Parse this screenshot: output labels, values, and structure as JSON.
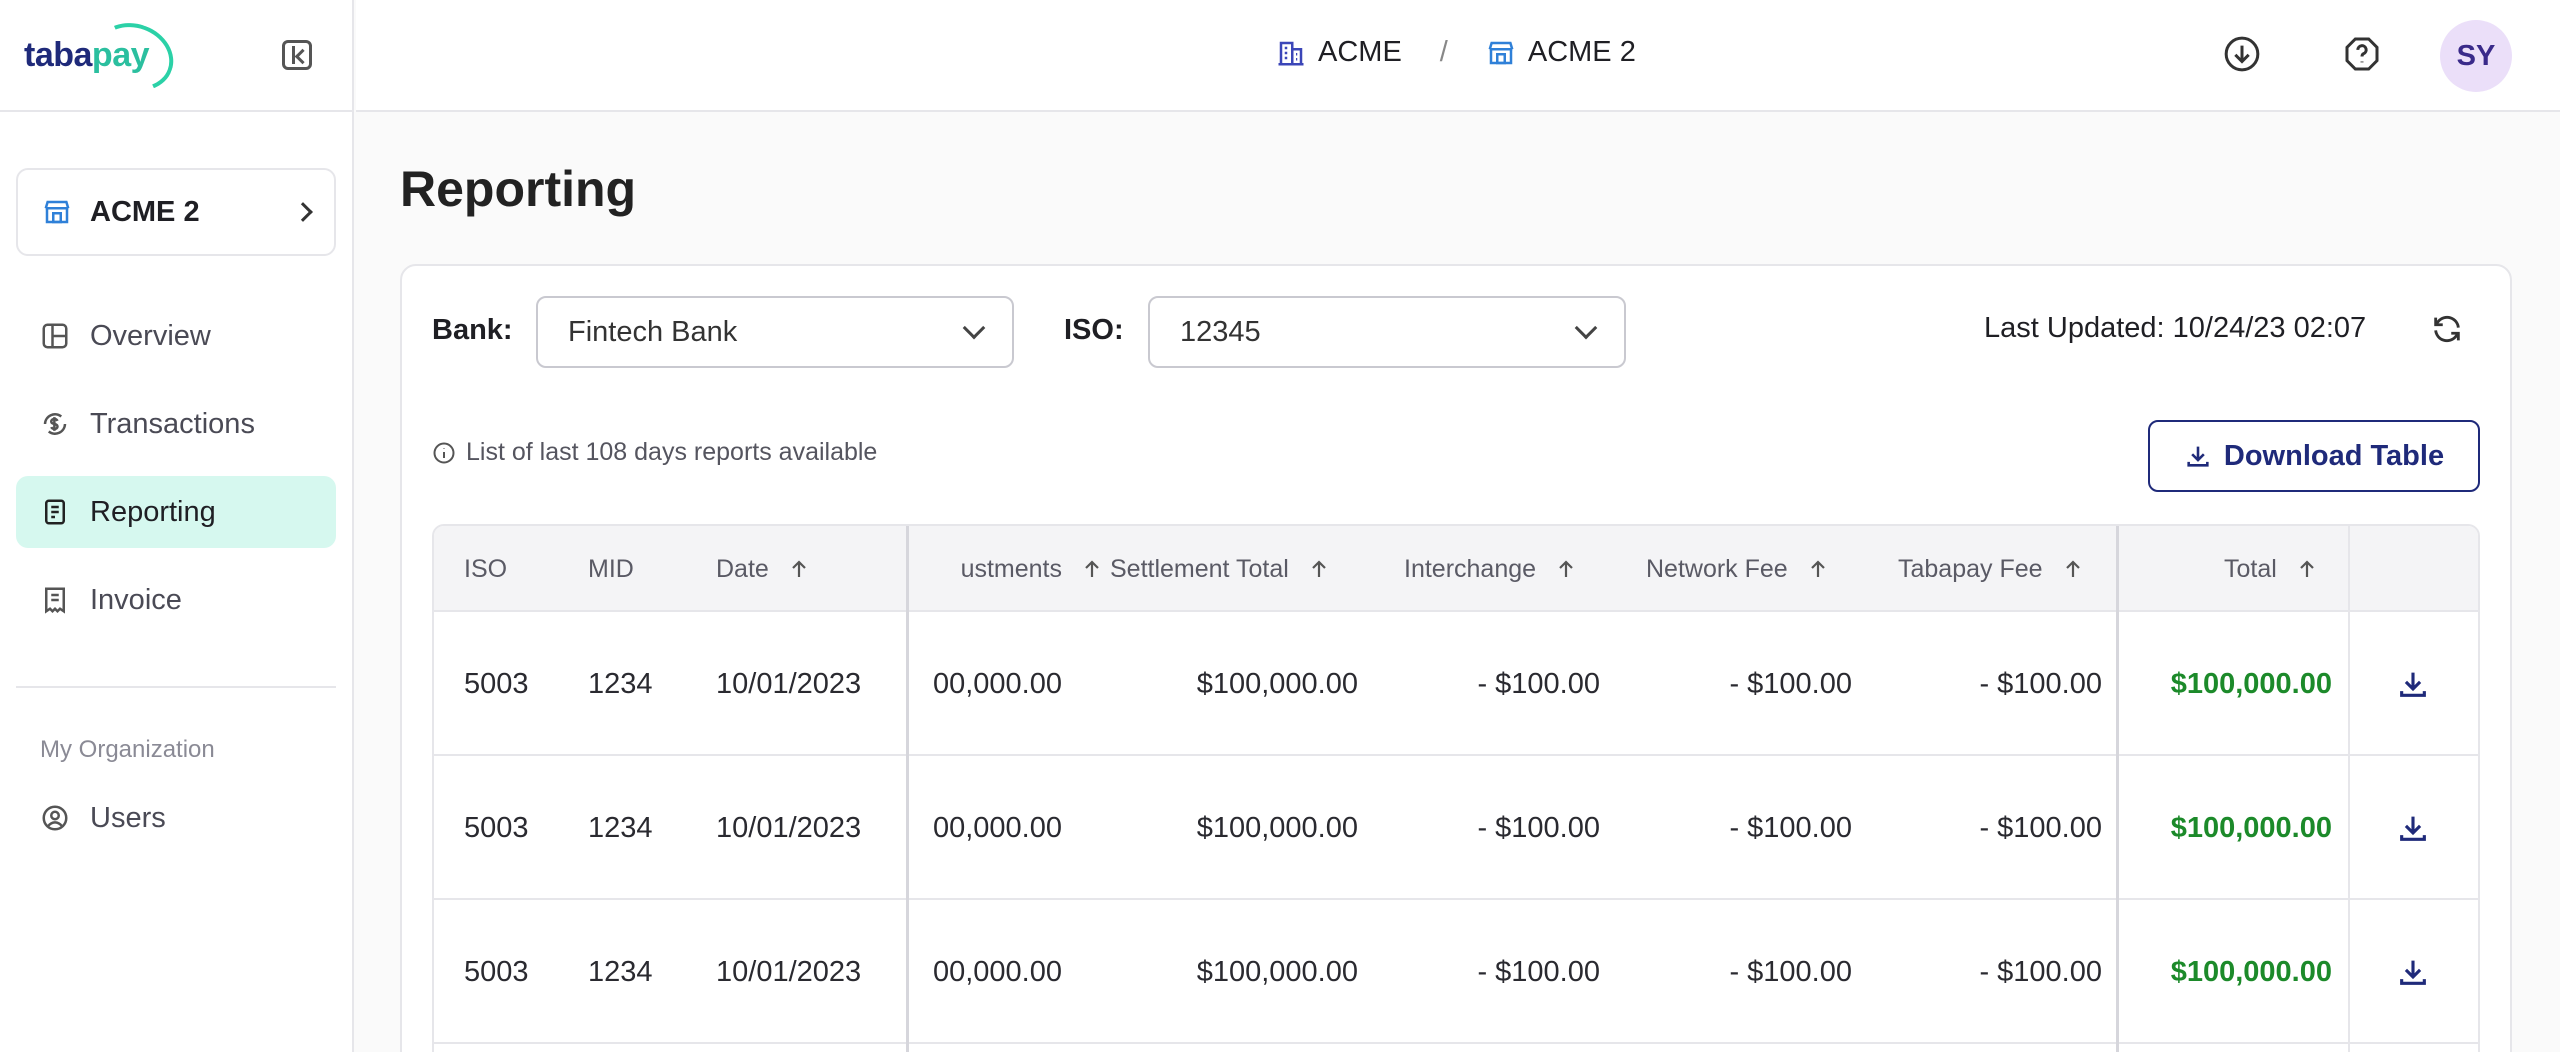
{
  "brand": {
    "logo_part1": "taba",
    "logo_part2": "pay"
  },
  "sidebar": {
    "org_name": "ACME 2",
    "nav": [
      {
        "label": "Overview",
        "icon": "layout-icon"
      },
      {
        "label": "Transactions",
        "icon": "dollar-cycle-icon"
      },
      {
        "label": "Reporting",
        "icon": "document-icon"
      },
      {
        "label": "Invoice",
        "icon": "invoice-icon"
      }
    ],
    "section_title": "My Organization",
    "org_nav": [
      {
        "label": "Users",
        "icon": "user-circle-icon"
      }
    ]
  },
  "header": {
    "crumb_1": "ACME",
    "crumb_sep": "/",
    "crumb_2": "ACME 2",
    "avatar_initials": "SY"
  },
  "page": {
    "title": "Reporting",
    "bank_label": "Bank:",
    "bank_value": "Fintech Bank",
    "iso_label": "ISO:",
    "iso_value": "12345",
    "last_updated": "Last Updated: 10/24/23 02:07",
    "info_text": "List of last 108 days reports available",
    "download_table_label": "Download Table"
  },
  "table": {
    "columns": {
      "iso": "ISO",
      "mid": "MID",
      "date": "Date",
      "adjustments": "ustments",
      "settlement_total": "Settlement Total",
      "interchange": "Interchange",
      "network_fee": "Network Fee",
      "tabapay_fee": "Tabapay Fee",
      "total": "Total"
    },
    "rows": [
      {
        "iso": "5003",
        "mid": "1234",
        "date": "10/01/2023",
        "adjustments": "00,000.00",
        "settlement_total": "$100,000.00",
        "interchange": "- $100.00",
        "network_fee": "- $100.00",
        "tabapay_fee": "- $100.00",
        "total": "$100,000.00"
      },
      {
        "iso": "5003",
        "mid": "1234",
        "date": "10/01/2023",
        "adjustments": "00,000.00",
        "settlement_total": "$100,000.00",
        "interchange": "- $100.00",
        "network_fee": "- $100.00",
        "tabapay_fee": "- $100.00",
        "total": "$100,000.00"
      },
      {
        "iso": "5003",
        "mid": "1234",
        "date": "10/01/2023",
        "adjustments": "00,000.00",
        "settlement_total": "$100,000.00",
        "interchange": "- $100.00",
        "network_fee": "- $100.00",
        "tabapay_fee": "- $100.00",
        "total": "$100,000.00"
      }
    ]
  },
  "colors": {
    "accent": "#1f2a7a",
    "active_nav_bg": "#d6f8ef",
    "total_green": "#1c8a2a",
    "avatar_bg": "#ebdff9"
  }
}
